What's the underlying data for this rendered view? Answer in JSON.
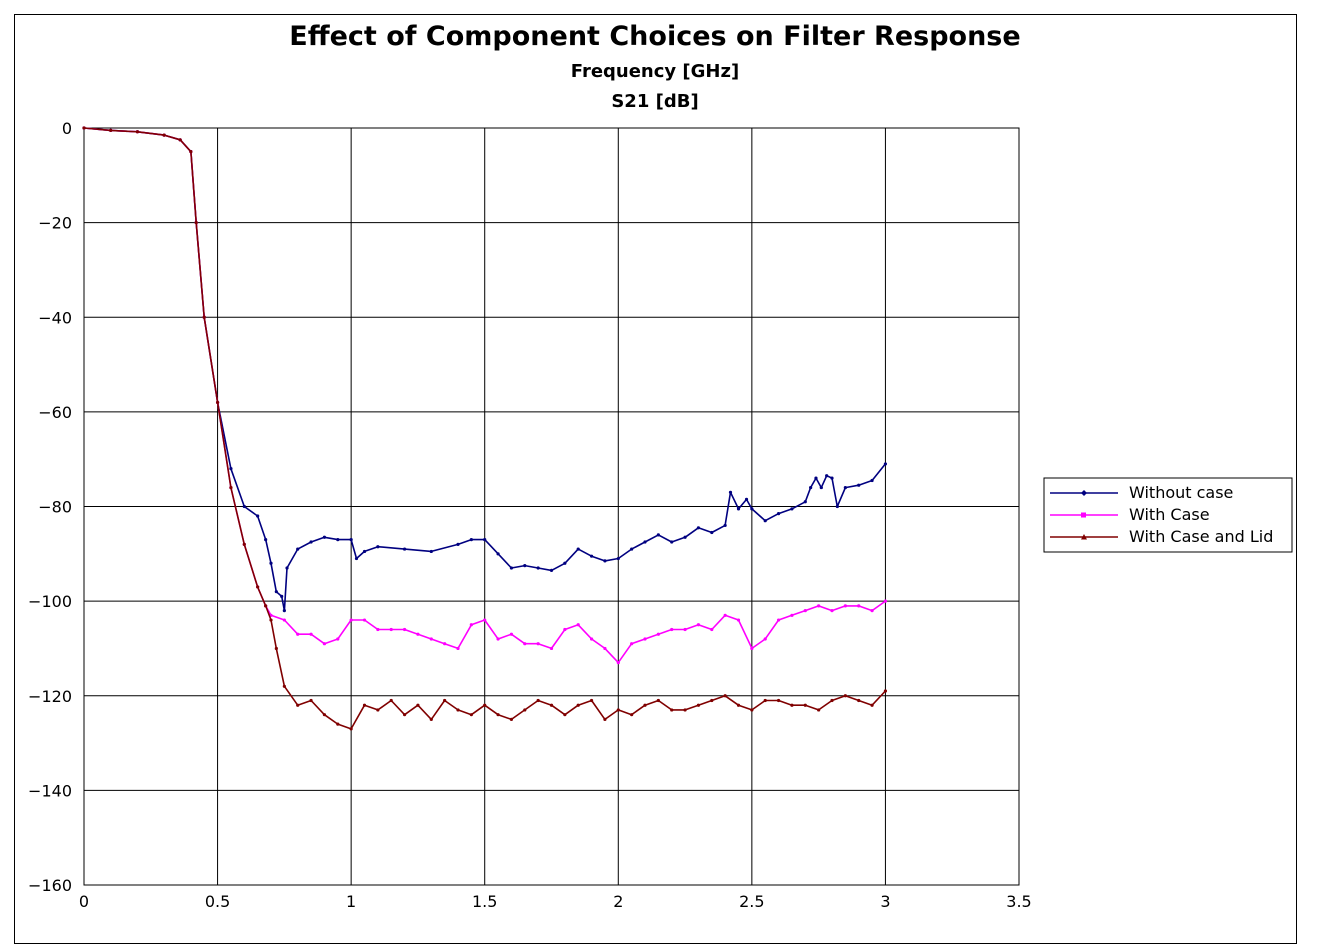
{
  "chart_data": {
    "type": "line",
    "title": "Effect of Component Choices on Filter Response",
    "subtitle_1": "Frequency [GHz]",
    "subtitle_2": "S21 [dB]",
    "xlim": [
      0,
      3.5
    ],
    "ylim": [
      -160,
      0
    ],
    "x_ticks": [
      0,
      0.5,
      1,
      1.5,
      2,
      2.5,
      3,
      3.5
    ],
    "x_tick_labels": [
      "0",
      "0.5",
      "1",
      "1.5",
      "2",
      "2.5",
      "3",
      "3.5"
    ],
    "y_ticks": [
      0,
      -20,
      -40,
      -60,
      -80,
      -100,
      -120,
      -140,
      -160
    ],
    "y_tick_labels": [
      "0",
      "−20",
      "−40",
      "−60",
      "−80",
      "−100",
      "−120",
      "−140",
      "−160"
    ],
    "grid": true,
    "legend_position": "right",
    "series": [
      {
        "name": "Without case",
        "color": "#000080",
        "marker": "diamond",
        "x": [
          0,
          0.1,
          0.2,
          0.3,
          0.36,
          0.4,
          0.42,
          0.45,
          0.5,
          0.55,
          0.6,
          0.65,
          0.68,
          0.7,
          0.72,
          0.74,
          0.75,
          0.76,
          0.8,
          0.85,
          0.9,
          0.95,
          1.0,
          1.02,
          1.05,
          1.1,
          1.2,
          1.3,
          1.4,
          1.45,
          1.5,
          1.55,
          1.6,
          1.65,
          1.7,
          1.75,
          1.8,
          1.85,
          1.9,
          1.95,
          2.0,
          2.05,
          2.1,
          2.15,
          2.2,
          2.25,
          2.3,
          2.35,
          2.4,
          2.42,
          2.45,
          2.48,
          2.5,
          2.55,
          2.6,
          2.65,
          2.7,
          2.72,
          2.74,
          2.76,
          2.78,
          2.8,
          2.82,
          2.85,
          2.9,
          2.95,
          3.0
        ],
        "y": [
          0,
          -0.5,
          -0.8,
          -1.5,
          -2.5,
          -5,
          -20,
          -40,
          -58,
          -72,
          -80,
          -82,
          -87,
          -92,
          -98,
          -99,
          -102,
          -93,
          -89,
          -87.5,
          -86.5,
          -87,
          -87,
          -91,
          -89.5,
          -88.5,
          -89,
          -89.5,
          -88,
          -87,
          -87,
          -90,
          -93,
          -92.5,
          -93,
          -93.5,
          -92,
          -89,
          -90.5,
          -91.5,
          -91,
          -89,
          -87.5,
          -86,
          -87.5,
          -86.5,
          -84.5,
          -85.5,
          -84,
          -77,
          -80.5,
          -78.5,
          -80.5,
          -83,
          -81.5,
          -80.5,
          -79,
          -76,
          -74,
          -76,
          -73.5,
          -74,
          -80,
          -76,
          -75.5,
          -74.5,
          -71
        ]
      },
      {
        "name": "With Case",
        "color": "#ff00ff",
        "marker": "square",
        "x": [
          0,
          0.1,
          0.2,
          0.3,
          0.36,
          0.4,
          0.42,
          0.45,
          0.5,
          0.55,
          0.6,
          0.65,
          0.68,
          0.7,
          0.75,
          0.8,
          0.85,
          0.9,
          0.95,
          1.0,
          1.05,
          1.1,
          1.15,
          1.2,
          1.25,
          1.3,
          1.35,
          1.4,
          1.45,
          1.5,
          1.55,
          1.6,
          1.65,
          1.7,
          1.75,
          1.8,
          1.85,
          1.9,
          1.95,
          2.0,
          2.05,
          2.1,
          2.15,
          2.2,
          2.25,
          2.3,
          2.35,
          2.4,
          2.45,
          2.5,
          2.55,
          2.6,
          2.65,
          2.7,
          2.75,
          2.8,
          2.85,
          2.9,
          2.95,
          3.0
        ],
        "y": [
          0,
          -0.5,
          -0.8,
          -1.5,
          -2.5,
          -5,
          -20,
          -40,
          -58,
          -76,
          -88,
          -97,
          -101,
          -103,
          -104,
          -107,
          -107,
          -109,
          -108,
          -104,
          -104,
          -106,
          -106,
          -106,
          -107,
          -108,
          -109,
          -110,
          -105,
          -104,
          -108,
          -107,
          -109,
          -109,
          -110,
          -106,
          -105,
          -108,
          -110,
          -113,
          -109,
          -108,
          -107,
          -106,
          -106,
          -105,
          -106,
          -103,
          -104,
          -110,
          -108,
          -104,
          -103,
          -102,
          -101,
          -102,
          -101,
          -101,
          -102,
          -100
        ]
      },
      {
        "name": "With Case and Lid",
        "color": "#800000",
        "marker": "triangle",
        "x": [
          0,
          0.1,
          0.2,
          0.3,
          0.36,
          0.4,
          0.42,
          0.45,
          0.5,
          0.55,
          0.6,
          0.65,
          0.68,
          0.7,
          0.72,
          0.75,
          0.8,
          0.85,
          0.9,
          0.95,
          1.0,
          1.05,
          1.1,
          1.15,
          1.2,
          1.25,
          1.3,
          1.35,
          1.4,
          1.45,
          1.5,
          1.55,
          1.6,
          1.65,
          1.7,
          1.75,
          1.8,
          1.85,
          1.9,
          1.95,
          2.0,
          2.05,
          2.1,
          2.15,
          2.2,
          2.25,
          2.3,
          2.35,
          2.4,
          2.45,
          2.5,
          2.55,
          2.6,
          2.65,
          2.7,
          2.75,
          2.8,
          2.85,
          2.9,
          2.95,
          3.0
        ],
        "y": [
          0,
          -0.5,
          -0.8,
          -1.5,
          -2.5,
          -5,
          -20,
          -40,
          -58,
          -76,
          -88,
          -97,
          -101,
          -104,
          -110,
          -118,
          -122,
          -121,
          -124,
          -126,
          -127,
          -122,
          -123,
          -121,
          -124,
          -122,
          -125,
          -121,
          -123,
          -124,
          -122,
          -124,
          -125,
          -123,
          -121,
          -122,
          -124,
          -122,
          -121,
          -125,
          -123,
          -124,
          -122,
          -121,
          -123,
          -123,
          -122,
          -121,
          -120,
          -122,
          -123,
          -121,
          -121,
          -122,
          -122,
          -123,
          -121,
          -120,
          -121,
          -122,
          -119
        ]
      }
    ]
  }
}
